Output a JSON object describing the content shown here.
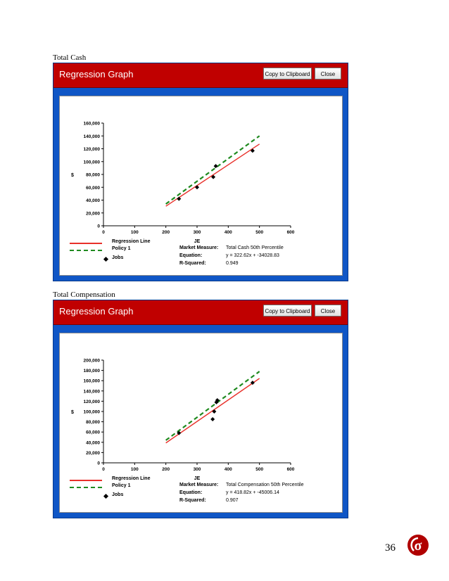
{
  "sections": [
    {
      "label": "Total Cash",
      "window": {
        "title": "Regression Graph",
        "copy_label": "Copy to Clipboard",
        "close_label": "Close"
      },
      "legend": {
        "regression": "Regression Line",
        "policy": "Policy 1",
        "jobs": "Jobs"
      },
      "info": {
        "market_key": "Market Measure:",
        "market_val": "Total Cash 50th Percentile",
        "equation_key": "Equation:",
        "equation_val": "y = 322.62x + -34028.83",
        "r2_key": "R-Squared:",
        "r2_val": "0.949"
      },
      "chart_data": {
        "type": "scatter",
        "xlabel": "JE",
        "ylabel": "$",
        "xlim": [
          0,
          600
        ],
        "ylim": [
          0,
          160000
        ],
        "x_ticks": [
          "0",
          "100",
          "200",
          "300",
          "400",
          "500",
          "600"
        ],
        "y_ticks": [
          "0",
          "20,000",
          "40,000",
          "60,000",
          "80,000",
          "100,000",
          "120,000",
          "140,000",
          "160,000"
        ],
        "series": [
          {
            "name": "Regression Line",
            "kind": "line",
            "color": "#e8302a",
            "x": [
              200,
              500
            ],
            "y": [
              30500,
              127300
            ]
          },
          {
            "name": "Policy 1",
            "kind": "dashed",
            "color": "#1f8a1f",
            "x": [
              200,
              500
            ],
            "y": [
              34000,
              140000
            ]
          },
          {
            "name": "Jobs",
            "kind": "points",
            "color": "#000000",
            "x": [
              242,
              300,
              352,
              360,
              478
            ],
            "y": [
              42000,
              60000,
              76000,
              93000,
              117000
            ]
          }
        ]
      }
    },
    {
      "label": "Total Compensation",
      "window": {
        "title": "Regression Graph",
        "copy_label": "Copy to Clipboard",
        "close_label": "Close"
      },
      "legend": {
        "regression": "Regression Line",
        "policy": "Policy 1",
        "jobs": "Jobs"
      },
      "info": {
        "market_key": "Market Measure:",
        "market_val": "Total Compensation 50th Percentile",
        "equation_key": "Equation:",
        "equation_val": "y = 418.82x + -45006.14",
        "r2_key": "R-Squared:",
        "r2_val": "0.907"
      },
      "chart_data": {
        "type": "scatter",
        "xlabel": "JE",
        "ylabel": "$",
        "xlim": [
          0,
          600
        ],
        "ylim": [
          0,
          200000
        ],
        "x_ticks": [
          "0",
          "100",
          "200",
          "300",
          "400",
          "500",
          "600"
        ],
        "y_ticks": [
          "0",
          "20,000",
          "40,000",
          "60,000",
          "80,000",
          "100,000",
          "120,000",
          "140,000",
          "160,000",
          "180,000",
          "200,000"
        ],
        "series": [
          {
            "name": "Regression Line",
            "kind": "line",
            "color": "#e8302a",
            "x": [
              200,
              500
            ],
            "y": [
              38700,
              164400
            ]
          },
          {
            "name": "Policy 1",
            "kind": "dashed",
            "color": "#1f8a1f",
            "x": [
              200,
              500
            ],
            "y": [
              44000,
              178000
            ]
          },
          {
            "name": "Jobs",
            "kind": "points",
            "color": "#000000",
            "x": [
              242,
              350,
              355,
              362,
              365,
              478
            ],
            "y": [
              58000,
              85000,
              100000,
              118000,
              122000,
              156000
            ]
          }
        ]
      }
    }
  ],
  "page_number": "36",
  "logo": {
    "icon": "six-sigma-logo-icon",
    "color": "#b00000"
  }
}
